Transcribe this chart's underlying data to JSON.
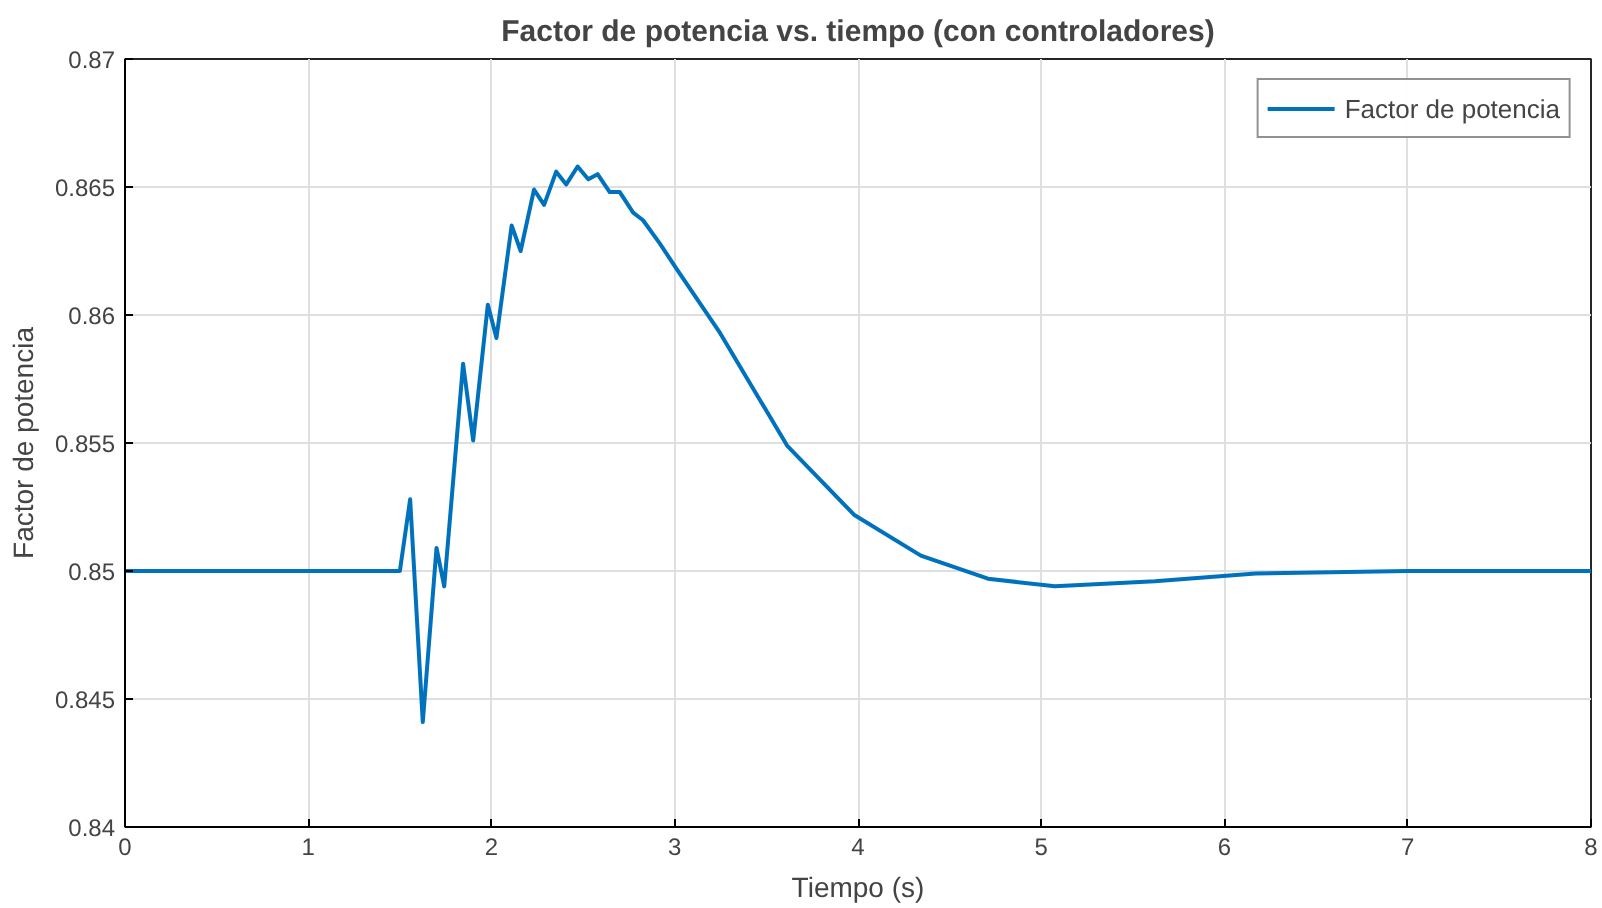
{
  "chart_data": {
    "type": "line",
    "title": "Factor de potencia vs. tiempo (con controladores)",
    "xlabel": "Tiempo (s)",
    "ylabel": "Factor de potencia",
    "series": [
      {
        "name": "Factor de potencia",
        "color": "#0072bd",
        "x": [
          0,
          0.5,
          1.0,
          1.5,
          1.556,
          1.625,
          1.7,
          1.742,
          1.845,
          1.9,
          1.98,
          2.027,
          2.11,
          2.159,
          2.232,
          2.287,
          2.353,
          2.408,
          2.47,
          2.528,
          2.579,
          2.645,
          2.7,
          2.773,
          2.827,
          2.918,
          3.01,
          3.247,
          3.613,
          3.978,
          4.343,
          4.709,
          5.074,
          5.62,
          6.17,
          7.0,
          8.0
        ],
        "values": [
          0.85,
          0.85,
          0.85,
          0.85,
          0.8528,
          0.8441,
          0.8509,
          0.8494,
          0.8581,
          0.8551,
          0.8604,
          0.8591,
          0.8635,
          0.8625,
          0.8649,
          0.8643,
          0.8656,
          0.8651,
          0.8658,
          0.8653,
          0.8655,
          0.8648,
          0.8648,
          0.864,
          0.8637,
          0.8628,
          0.8618,
          0.8593,
          0.8549,
          0.8522,
          0.8506,
          0.8497,
          0.8494,
          0.8496,
          0.8499,
          0.85,
          0.85
        ]
      }
    ],
    "xlim": [
      0,
      8
    ],
    "ylim": [
      0.84,
      0.87
    ],
    "xticks": [
      0,
      1,
      2,
      3,
      4,
      5,
      6,
      7,
      8
    ],
    "yticks": [
      0.84,
      0.845,
      0.85,
      0.855,
      0.86,
      0.865,
      0.87
    ],
    "grid": true,
    "legend": "top right",
    "line_style": "solid",
    "marker": "none"
  }
}
